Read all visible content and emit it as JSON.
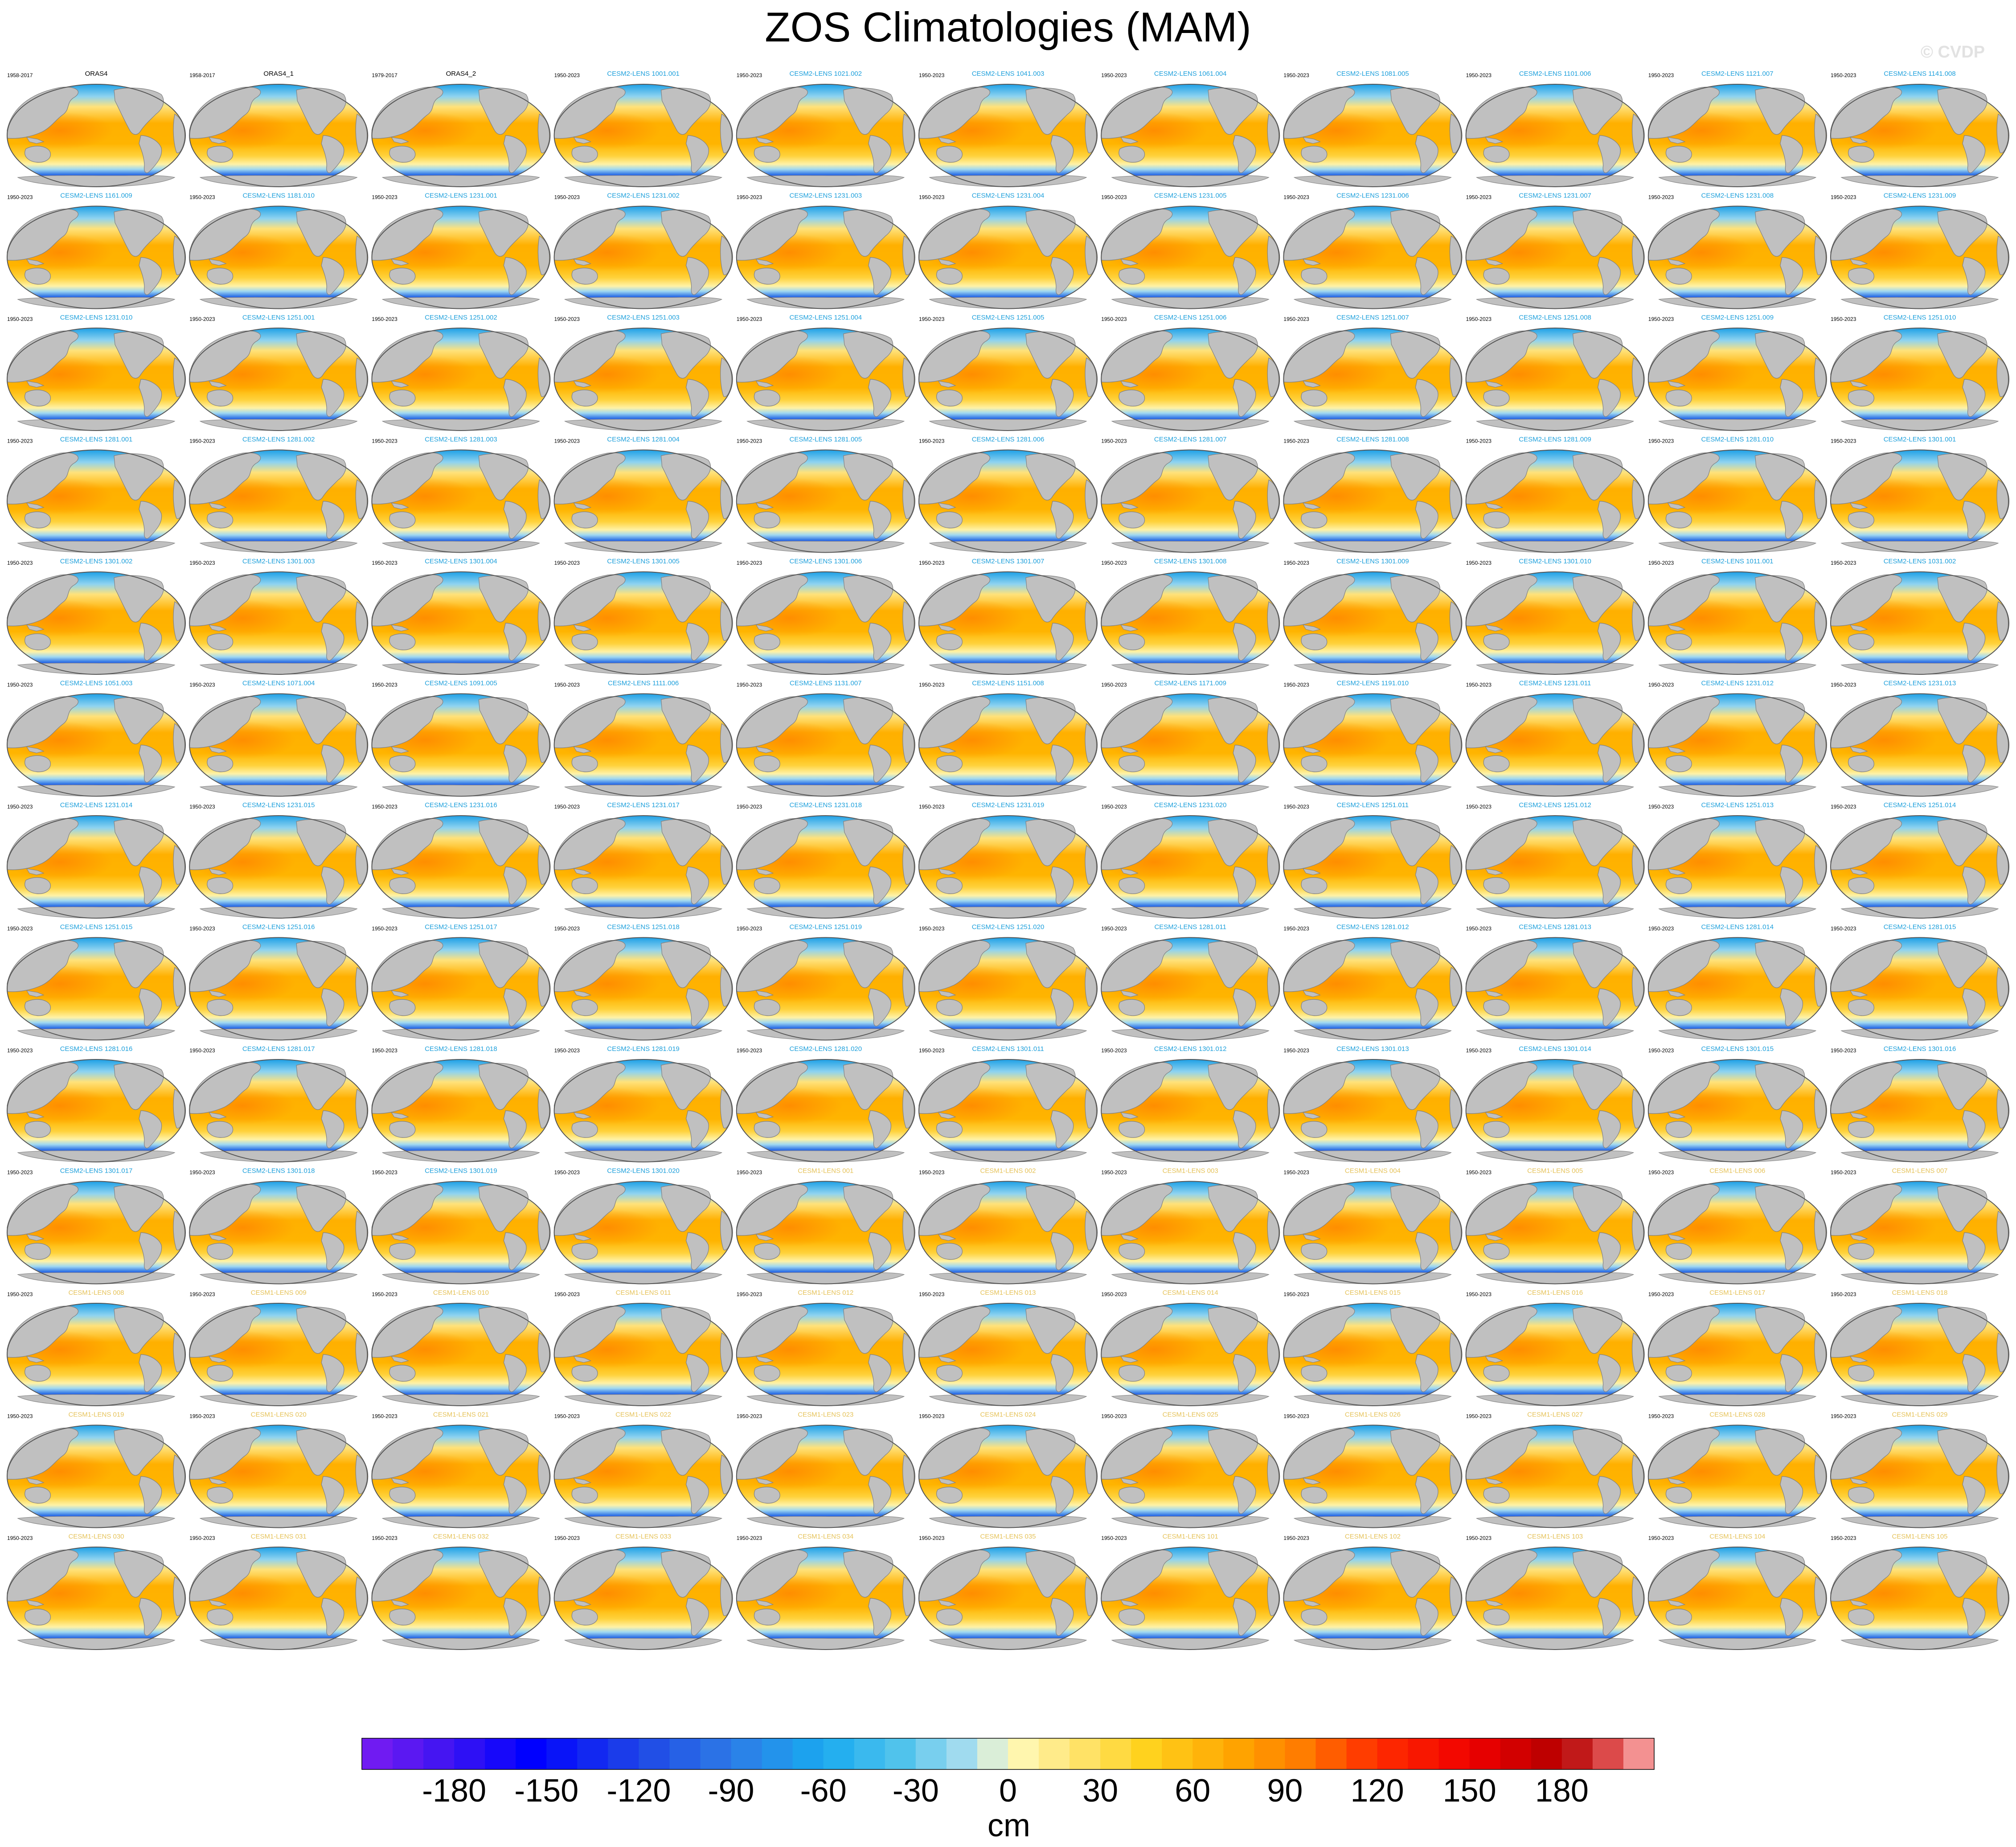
{
  "header": {
    "title": "ZOS Climatologies (MAM)",
    "watermark": "© CVDP"
  },
  "colors": {
    "background": "#ffffff",
    "land": "#c0c0c0",
    "label_obs": "#000000",
    "label_cesm2": "#1ea0dc",
    "label_cesm1": "#e6c35a"
  },
  "chart_data": {
    "type": "heatmap",
    "title": "ZOS Climatologies (MAM)",
    "description_source": "grid of map panels, one per dataset/ensemble member",
    "variable": "ZOS",
    "season": "MAM",
    "units": "cm",
    "projection": "global map (Robinson-like), Pacific-centered",
    "grid": {
      "rows": 13,
      "cols": 11
    },
    "panels": [
      {
        "label": "ORAS4",
        "years": "1958-2017",
        "group": "obs"
      },
      {
        "label": "ORAS4_1",
        "years": "1958-2017",
        "group": "obs"
      },
      {
        "label": "ORAS4_2",
        "years": "1979-2017",
        "group": "obs"
      },
      {
        "label": "CESM2-LENS 1001.001",
        "years": "1950-2023",
        "group": "cesm2"
      },
      {
        "label": "CESM2-LENS 1021.002",
        "years": "1950-2023",
        "group": "cesm2"
      },
      {
        "label": "CESM2-LENS 1041.003",
        "years": "1950-2023",
        "group": "cesm2"
      },
      {
        "label": "CESM2-LENS 1061.004",
        "years": "1950-2023",
        "group": "cesm2"
      },
      {
        "label": "CESM2-LENS 1081.005",
        "years": "1950-2023",
        "group": "cesm2"
      },
      {
        "label": "CESM2-LENS 1101.006",
        "years": "1950-2023",
        "group": "cesm2"
      },
      {
        "label": "CESM2-LENS 1121.007",
        "years": "1950-2023",
        "group": "cesm2"
      },
      {
        "label": "CESM2-LENS 1141.008",
        "years": "1950-2023",
        "group": "cesm2"
      },
      {
        "label": "CESM2-LENS 1161.009",
        "years": "1950-2023",
        "group": "cesm2"
      },
      {
        "label": "CESM2-LENS 1181.010",
        "years": "1950-2023",
        "group": "cesm2"
      },
      {
        "label": "CESM2-LENS 1231.001",
        "years": "1950-2023",
        "group": "cesm2"
      },
      {
        "label": "CESM2-LENS 1231.002",
        "years": "1950-2023",
        "group": "cesm2"
      },
      {
        "label": "CESM2-LENS 1231.003",
        "years": "1950-2023",
        "group": "cesm2"
      },
      {
        "label": "CESM2-LENS 1231.004",
        "years": "1950-2023",
        "group": "cesm2"
      },
      {
        "label": "CESM2-LENS 1231.005",
        "years": "1950-2023",
        "group": "cesm2"
      },
      {
        "label": "CESM2-LENS 1231.006",
        "years": "1950-2023",
        "group": "cesm2"
      },
      {
        "label": "CESM2-LENS 1231.007",
        "years": "1950-2023",
        "group": "cesm2"
      },
      {
        "label": "CESM2-LENS 1231.008",
        "years": "1950-2023",
        "group": "cesm2"
      },
      {
        "label": "CESM2-LENS 1231.009",
        "years": "1950-2023",
        "group": "cesm2"
      },
      {
        "label": "CESM2-LENS 1231.010",
        "years": "1950-2023",
        "group": "cesm2"
      },
      {
        "label": "CESM2-LENS 1251.001",
        "years": "1950-2023",
        "group": "cesm2"
      },
      {
        "label": "CESM2-LENS 1251.002",
        "years": "1950-2023",
        "group": "cesm2"
      },
      {
        "label": "CESM2-LENS 1251.003",
        "years": "1950-2023",
        "group": "cesm2"
      },
      {
        "label": "CESM2-LENS 1251.004",
        "years": "1950-2023",
        "group": "cesm2"
      },
      {
        "label": "CESM2-LENS 1251.005",
        "years": "1950-2023",
        "group": "cesm2"
      },
      {
        "label": "CESM2-LENS 1251.006",
        "years": "1950-2023",
        "group": "cesm2"
      },
      {
        "label": "CESM2-LENS 1251.007",
        "years": "1950-2023",
        "group": "cesm2"
      },
      {
        "label": "CESM2-LENS 1251.008",
        "years": "1950-2023",
        "group": "cesm2"
      },
      {
        "label": "CESM2-LENS 1251.009",
        "years": "1950-2023",
        "group": "cesm2"
      },
      {
        "label": "CESM2-LENS 1251.010",
        "years": "1950-2023",
        "group": "cesm2"
      },
      {
        "label": "CESM2-LENS 1281.001",
        "years": "1950-2023",
        "group": "cesm2"
      },
      {
        "label": "CESM2-LENS 1281.002",
        "years": "1950-2023",
        "group": "cesm2"
      },
      {
        "label": "CESM2-LENS 1281.003",
        "years": "1950-2023",
        "group": "cesm2"
      },
      {
        "label": "CESM2-LENS 1281.004",
        "years": "1950-2023",
        "group": "cesm2"
      },
      {
        "label": "CESM2-LENS 1281.005",
        "years": "1950-2023",
        "group": "cesm2"
      },
      {
        "label": "CESM2-LENS 1281.006",
        "years": "1950-2023",
        "group": "cesm2"
      },
      {
        "label": "CESM2-LENS 1281.007",
        "years": "1950-2023",
        "group": "cesm2"
      },
      {
        "label": "CESM2-LENS 1281.008",
        "years": "1950-2023",
        "group": "cesm2"
      },
      {
        "label": "CESM2-LENS 1281.009",
        "years": "1950-2023",
        "group": "cesm2"
      },
      {
        "label": "CESM2-LENS 1281.010",
        "years": "1950-2023",
        "group": "cesm2"
      },
      {
        "label": "CESM2-LENS 1301.001",
        "years": "1950-2023",
        "group": "cesm2"
      },
      {
        "label": "CESM2-LENS 1301.002",
        "years": "1950-2023",
        "group": "cesm2"
      },
      {
        "label": "CESM2-LENS 1301.003",
        "years": "1950-2023",
        "group": "cesm2"
      },
      {
        "label": "CESM2-LENS 1301.004",
        "years": "1950-2023",
        "group": "cesm2"
      },
      {
        "label": "CESM2-LENS 1301.005",
        "years": "1950-2023",
        "group": "cesm2"
      },
      {
        "label": "CESM2-LENS 1301.006",
        "years": "1950-2023",
        "group": "cesm2"
      },
      {
        "label": "CESM2-LENS 1301.007",
        "years": "1950-2023",
        "group": "cesm2"
      },
      {
        "label": "CESM2-LENS 1301.008",
        "years": "1950-2023",
        "group": "cesm2"
      },
      {
        "label": "CESM2-LENS 1301.009",
        "years": "1950-2023",
        "group": "cesm2"
      },
      {
        "label": "CESM2-LENS 1301.010",
        "years": "1950-2023",
        "group": "cesm2"
      },
      {
        "label": "CESM2-LENS 1011.001",
        "years": "1950-2023",
        "group": "cesm2"
      },
      {
        "label": "CESM2-LENS 1031.002",
        "years": "1950-2023",
        "group": "cesm2"
      },
      {
        "label": "CESM2-LENS 1051.003",
        "years": "1950-2023",
        "group": "cesm2"
      },
      {
        "label": "CESM2-LENS 1071.004",
        "years": "1950-2023",
        "group": "cesm2"
      },
      {
        "label": "CESM2-LENS 1091.005",
        "years": "1950-2023",
        "group": "cesm2"
      },
      {
        "label": "CESM2-LENS 1111.006",
        "years": "1950-2023",
        "group": "cesm2"
      },
      {
        "label": "CESM2-LENS 1131.007",
        "years": "1950-2023",
        "group": "cesm2"
      },
      {
        "label": "CESM2-LENS 1151.008",
        "years": "1950-2023",
        "group": "cesm2"
      },
      {
        "label": "CESM2-LENS 1171.009",
        "years": "1950-2023",
        "group": "cesm2"
      },
      {
        "label": "CESM2-LENS 1191.010",
        "years": "1950-2023",
        "group": "cesm2"
      },
      {
        "label": "CESM2-LENS 1231.011",
        "years": "1950-2023",
        "group": "cesm2"
      },
      {
        "label": "CESM2-LENS 1231.012",
        "years": "1950-2023",
        "group": "cesm2"
      },
      {
        "label": "CESM2-LENS 1231.013",
        "years": "1950-2023",
        "group": "cesm2"
      },
      {
        "label": "CESM2-LENS 1231.014",
        "years": "1950-2023",
        "group": "cesm2"
      },
      {
        "label": "CESM2-LENS 1231.015",
        "years": "1950-2023",
        "group": "cesm2"
      },
      {
        "label": "CESM2-LENS 1231.016",
        "years": "1950-2023",
        "group": "cesm2"
      },
      {
        "label": "CESM2-LENS 1231.017",
        "years": "1950-2023",
        "group": "cesm2"
      },
      {
        "label": "CESM2-LENS 1231.018",
        "years": "1950-2023",
        "group": "cesm2"
      },
      {
        "label": "CESM2-LENS 1231.019",
        "years": "1950-2023",
        "group": "cesm2"
      },
      {
        "label": "CESM2-LENS 1231.020",
        "years": "1950-2023",
        "group": "cesm2"
      },
      {
        "label": "CESM2-LENS 1251.011",
        "years": "1950-2023",
        "group": "cesm2"
      },
      {
        "label": "CESM2-LENS 1251.012",
        "years": "1950-2023",
        "group": "cesm2"
      },
      {
        "label": "CESM2-LENS 1251.013",
        "years": "1950-2023",
        "group": "cesm2"
      },
      {
        "label": "CESM2-LENS 1251.014",
        "years": "1950-2023",
        "group": "cesm2"
      },
      {
        "label": "CESM2-LENS 1251.015",
        "years": "1950-2023",
        "group": "cesm2"
      },
      {
        "label": "CESM2-LENS 1251.016",
        "years": "1950-2023",
        "group": "cesm2"
      },
      {
        "label": "CESM2-LENS 1251.017",
        "years": "1950-2023",
        "group": "cesm2"
      },
      {
        "label": "CESM2-LENS 1251.018",
        "years": "1950-2023",
        "group": "cesm2"
      },
      {
        "label": "CESM2-LENS 1251.019",
        "years": "1950-2023",
        "group": "cesm2"
      },
      {
        "label": "CESM2-LENS 1251.020",
        "years": "1950-2023",
        "group": "cesm2"
      },
      {
        "label": "CESM2-LENS 1281.011",
        "years": "1950-2023",
        "group": "cesm2"
      },
      {
        "label": "CESM2-LENS 1281.012",
        "years": "1950-2023",
        "group": "cesm2"
      },
      {
        "label": "CESM2-LENS 1281.013",
        "years": "1950-2023",
        "group": "cesm2"
      },
      {
        "label": "CESM2-LENS 1281.014",
        "years": "1950-2023",
        "group": "cesm2"
      },
      {
        "label": "CESM2-LENS 1281.015",
        "years": "1950-2023",
        "group": "cesm2"
      },
      {
        "label": "CESM2-LENS 1281.016",
        "years": "1950-2023",
        "group": "cesm2"
      },
      {
        "label": "CESM2-LENS 1281.017",
        "years": "1950-2023",
        "group": "cesm2"
      },
      {
        "label": "CESM2-LENS 1281.018",
        "years": "1950-2023",
        "group": "cesm2"
      },
      {
        "label": "CESM2-LENS 1281.019",
        "years": "1950-2023",
        "group": "cesm2"
      },
      {
        "label": "CESM2-LENS 1281.020",
        "years": "1950-2023",
        "group": "cesm2"
      },
      {
        "label": "CESM2-LENS 1301.011",
        "years": "1950-2023",
        "group": "cesm2"
      },
      {
        "label": "CESM2-LENS 1301.012",
        "years": "1950-2023",
        "group": "cesm2"
      },
      {
        "label": "CESM2-LENS 1301.013",
        "years": "1950-2023",
        "group": "cesm2"
      },
      {
        "label": "CESM2-LENS 1301.014",
        "years": "1950-2023",
        "group": "cesm2"
      },
      {
        "label": "CESM2-LENS 1301.015",
        "years": "1950-2023",
        "group": "cesm2"
      },
      {
        "label": "CESM2-LENS 1301.016",
        "years": "1950-2023",
        "group": "cesm2"
      },
      {
        "label": "CESM2-LENS 1301.017",
        "years": "1950-2023",
        "group": "cesm2"
      },
      {
        "label": "CESM2-LENS 1301.018",
        "years": "1950-2023",
        "group": "cesm2"
      },
      {
        "label": "CESM2-LENS 1301.019",
        "years": "1950-2023",
        "group": "cesm2"
      },
      {
        "label": "CESM2-LENS 1301.020",
        "years": "1950-2023",
        "group": "cesm2"
      },
      {
        "label": "CESM1-LENS 001",
        "years": "1950-2023",
        "group": "cesm1"
      },
      {
        "label": "CESM1-LENS 002",
        "years": "1950-2023",
        "group": "cesm1"
      },
      {
        "label": "CESM1-LENS 003",
        "years": "1950-2023",
        "group": "cesm1"
      },
      {
        "label": "CESM1-LENS 004",
        "years": "1950-2023",
        "group": "cesm1"
      },
      {
        "label": "CESM1-LENS 005",
        "years": "1950-2023",
        "group": "cesm1"
      },
      {
        "label": "CESM1-LENS 006",
        "years": "1950-2023",
        "group": "cesm1"
      },
      {
        "label": "CESM1-LENS 007",
        "years": "1950-2023",
        "group": "cesm1"
      },
      {
        "label": "CESM1-LENS 008",
        "years": "1950-2023",
        "group": "cesm1"
      },
      {
        "label": "CESM1-LENS 009",
        "years": "1950-2023",
        "group": "cesm1"
      },
      {
        "label": "CESM1-LENS 010",
        "years": "1950-2023",
        "group": "cesm1"
      },
      {
        "label": "CESM1-LENS 011",
        "years": "1950-2023",
        "group": "cesm1"
      },
      {
        "label": "CESM1-LENS 012",
        "years": "1950-2023",
        "group": "cesm1"
      },
      {
        "label": "CESM1-LENS 013",
        "years": "1950-2023",
        "group": "cesm1"
      },
      {
        "label": "CESM1-LENS 014",
        "years": "1950-2023",
        "group": "cesm1"
      },
      {
        "label": "CESM1-LENS 015",
        "years": "1950-2023",
        "group": "cesm1"
      },
      {
        "label": "CESM1-LENS 016",
        "years": "1950-2023",
        "group": "cesm1"
      },
      {
        "label": "CESM1-LENS 017",
        "years": "1950-2023",
        "group": "cesm1"
      },
      {
        "label": "CESM1-LENS 018",
        "years": "1950-2023",
        "group": "cesm1"
      },
      {
        "label": "CESM1-LENS 019",
        "years": "1950-2023",
        "group": "cesm1"
      },
      {
        "label": "CESM1-LENS 020",
        "years": "1950-2023",
        "group": "cesm1"
      },
      {
        "label": "CESM1-LENS 021",
        "years": "1950-2023",
        "group": "cesm1"
      },
      {
        "label": "CESM1-LENS 022",
        "years": "1950-2023",
        "group": "cesm1"
      },
      {
        "label": "CESM1-LENS 023",
        "years": "1950-2023",
        "group": "cesm1"
      },
      {
        "label": "CESM1-LENS 024",
        "years": "1950-2023",
        "group": "cesm1"
      },
      {
        "label": "CESM1-LENS 025",
        "years": "1950-2023",
        "group": "cesm1"
      },
      {
        "label": "CESM1-LENS 026",
        "years": "1950-2023",
        "group": "cesm1"
      },
      {
        "label": "CESM1-LENS 027",
        "years": "1950-2023",
        "group": "cesm1"
      },
      {
        "label": "CESM1-LENS 028",
        "years": "1950-2023",
        "group": "cesm1"
      },
      {
        "label": "CESM1-LENS 029",
        "years": "1950-2023",
        "group": "cesm1"
      },
      {
        "label": "CESM1-LENS 030",
        "years": "1950-2023",
        "group": "cesm1"
      },
      {
        "label": "CESM1-LENS 031",
        "years": "1950-2023",
        "group": "cesm1"
      },
      {
        "label": "CESM1-LENS 032",
        "years": "1950-2023",
        "group": "cesm1"
      },
      {
        "label": "CESM1-LENS 033",
        "years": "1950-2023",
        "group": "cesm1"
      },
      {
        "label": "CESM1-LENS 034",
        "years": "1950-2023",
        "group": "cesm1"
      },
      {
        "label": "CESM1-LENS 035",
        "years": "1950-2023",
        "group": "cesm1"
      },
      {
        "label": "CESM1-LENS 101",
        "years": "1950-2023",
        "group": "cesm1"
      },
      {
        "label": "CESM1-LENS 102",
        "years": "1950-2023",
        "group": "cesm1"
      },
      {
        "label": "CESM1-LENS 103",
        "years": "1950-2023",
        "group": "cesm1"
      },
      {
        "label": "CESM1-LENS 104",
        "years": "1950-2023",
        "group": "cesm1"
      },
      {
        "label": "CESM1-LENS 105",
        "years": "1950-2023",
        "group": "cesm1"
      }
    ],
    "colorbar": {
      "orientation": "horizontal",
      "units_label": "cm",
      "range": [
        -210,
        210
      ],
      "step": 10,
      "tick_values": [
        -180,
        -150,
        -120,
        -90,
        -60,
        -30,
        0,
        30,
        60,
        90,
        120,
        150,
        180
      ],
      "tick_labels": [
        "-180",
        "-150",
        "-120",
        "-90",
        "-60",
        "-30",
        "0",
        "30",
        "60",
        "90",
        "120",
        "150",
        "180"
      ],
      "color_stops": [
        {
          "value": -210,
          "color": "#7b1cf2"
        },
        {
          "value": -180,
          "color": "#3a14f2"
        },
        {
          "value": -155,
          "color": "#0000ff"
        },
        {
          "value": -120,
          "color": "#1f46e6"
        },
        {
          "value": -90,
          "color": "#2d7be6"
        },
        {
          "value": -60,
          "color": "#19aaf0"
        },
        {
          "value": -35,
          "color": "#50c3ec"
        },
        {
          "value": -10,
          "color": "#b4e1f0"
        },
        {
          "value": 0,
          "color": "#fffbc0"
        },
        {
          "value": 20,
          "color": "#ffe678"
        },
        {
          "value": 45,
          "color": "#ffd21e"
        },
        {
          "value": 75,
          "color": "#ffa300"
        },
        {
          "value": 95,
          "color": "#ff7d00"
        },
        {
          "value": 120,
          "color": "#ff2d00"
        },
        {
          "value": 150,
          "color": "#f00000"
        },
        {
          "value": 180,
          "color": "#b40000"
        },
        {
          "value": 195,
          "color": "#dc4a4a"
        },
        {
          "value": 210,
          "color": "#ffb4b4"
        }
      ]
    }
  }
}
